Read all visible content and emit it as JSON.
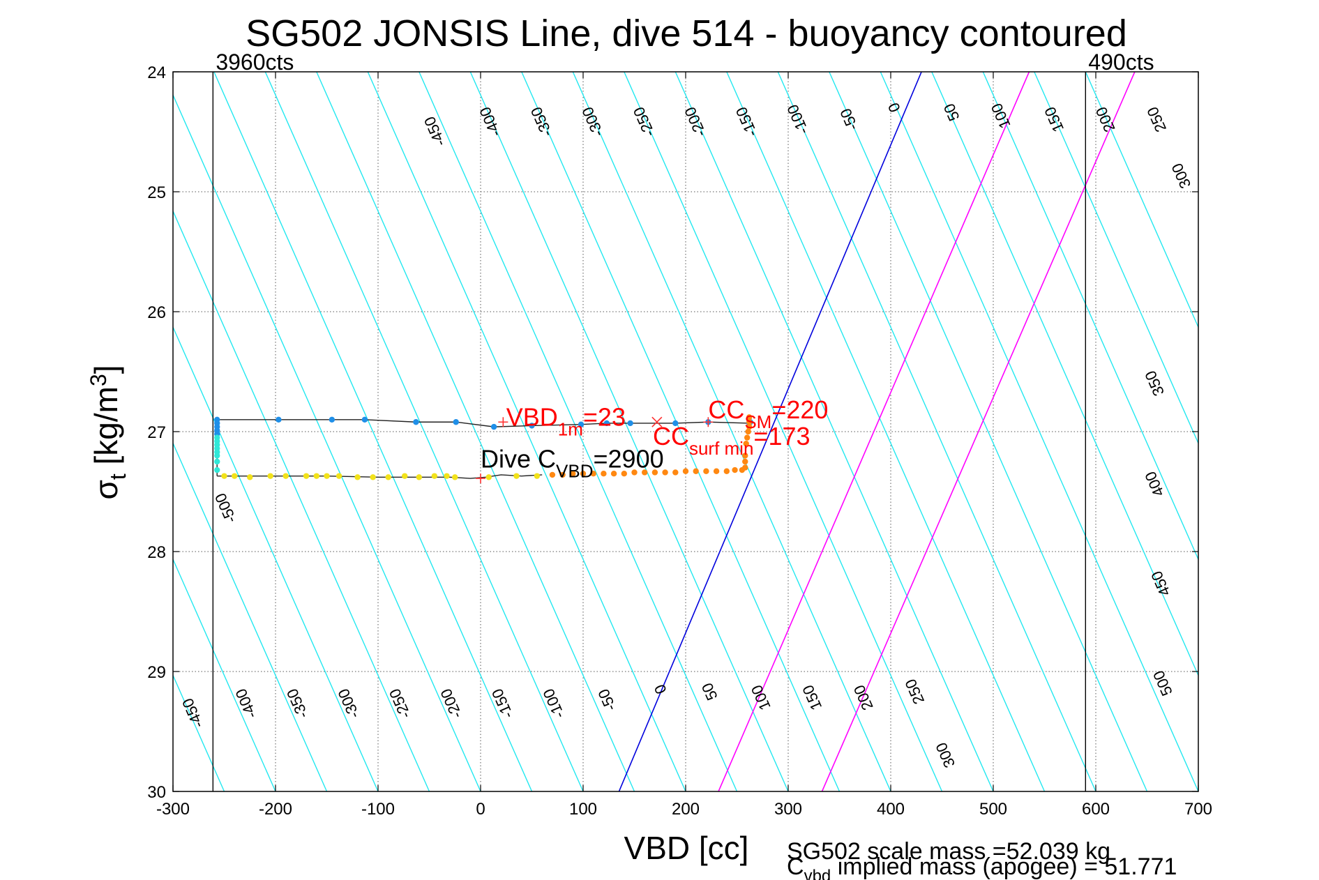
{
  "chart_data": {
    "type": "scatter",
    "title": "SG502 JONSIS Line, dive 514 - buoyancy contoured",
    "xlabel": "VBD [cc]",
    "ylabel_main": "σ",
    "ylabel_sub": "t",
    "ylabel_units": " [kg/m",
    "ylabel_sup": "3",
    "ylabel_close": "]",
    "xlim": [
      -300,
      700
    ],
    "ylim": [
      24,
      30
    ],
    "y_reversed": true,
    "grid": true,
    "xticks": [
      -300,
      -200,
      -100,
      0,
      100,
      200,
      300,
      400,
      500,
      600,
      700
    ],
    "xtick_labels": [
      "-300",
      "-200",
      "-100",
      "0",
      "100",
      "200",
      "300",
      "400",
      "500",
      "600",
      "700"
    ],
    "yticks": [
      24,
      25,
      26,
      27,
      28,
      29,
      30
    ],
    "ytick_labels": [
      "24",
      "25",
      "26",
      "27",
      "28",
      "29",
      "30"
    ],
    "vbd_limits": [
      {
        "x": -261,
        "label": "3960cts"
      },
      {
        "x": 590,
        "label": "490cts"
      }
    ],
    "contours": {
      "x_at_sigma24": [
        -1010,
        -960,
        -910,
        -860,
        -810,
        -760,
        -710,
        -660,
        -610,
        -560,
        -510,
        -460,
        -410,
        -360,
        -310,
        -260,
        -210,
        -160,
        -110,
        -60,
        -10,
        40,
        90,
        140,
        190,
        240,
        290,
        340,
        390,
        440,
        490,
        540,
        590
      ],
      "x_at_sigma30": [
        -700,
        -650,
        -600,
        -550,
        -500,
        -450,
        -400,
        -350,
        -300,
        -250,
        -200,
        -150,
        -100,
        -50,
        0,
        50,
        100,
        150,
        200,
        250,
        300,
        350,
        400,
        450,
        500,
        550,
        600,
        650,
        700,
        750,
        800,
        850,
        900
      ],
      "zero_contour": {
        "x_at_sigma24": 430,
        "x_at_sigma30": 135,
        "color": "#0000dd"
      },
      "special_contours": [
        {
          "x_at_sigma24": 535,
          "x_at_sigma30": 232,
          "color": "#ff00ff"
        },
        {
          "x_at_sigma24": 638,
          "x_at_sigma30": 333,
          "color": "#ff00ff"
        }
      ],
      "color": "#22e8f0",
      "top_labels": [
        {
          "text": "-450",
          "x": -40,
          "y": 24.48
        },
        {
          "text": "-400",
          "x": 14,
          "y": 24.4
        },
        {
          "text": "-350",
          "x": 64,
          "y": 24.4
        },
        {
          "text": "-300",
          "x": 114,
          "y": 24.4
        },
        {
          "text": "-250",
          "x": 164,
          "y": 24.4
        },
        {
          "text": "-200",
          "x": 214,
          "y": 24.4
        },
        {
          "text": "-150",
          "x": 264,
          "y": 24.4
        },
        {
          "text": "-100",
          "x": 314,
          "y": 24.38
        },
        {
          "text": "-50",
          "x": 364,
          "y": 24.38
        },
        {
          "text": "0",
          "x": 408,
          "y": 24.28
        },
        {
          "text": "50",
          "x": 464,
          "y": 24.32
        },
        {
          "text": "100",
          "x": 512,
          "y": 24.35
        },
        {
          "text": "150",
          "x": 564,
          "y": 24.38
        },
        {
          "text": "200",
          "x": 614,
          "y": 24.38
        },
        {
          "text": "250",
          "x": 664,
          "y": 24.38
        },
        {
          "text": "300",
          "x": 688,
          "y": 24.85
        },
        {
          "text": "350",
          "x": 662,
          "y": 26.58
        },
        {
          "text": "400",
          "x": 662,
          "y": 27.42
        },
        {
          "text": "450",
          "x": 668,
          "y": 28.25
        },
        {
          "text": "500",
          "x": 670,
          "y": 29.08
        }
      ],
      "bottom_labels": [
        {
          "text": "-500",
          "x": -244,
          "y": 27.62
        },
        {
          "text": "-450",
          "x": -276,
          "y": 29.33
        },
        {
          "text": "-400",
          "x": -224,
          "y": 29.25
        },
        {
          "text": "-350",
          "x": -174,
          "y": 29.25
        },
        {
          "text": "-300",
          "x": -124,
          "y": 29.25
        },
        {
          "text": "-250",
          "x": -74,
          "y": 29.25
        },
        {
          "text": "-200",
          "x": -24,
          "y": 29.25
        },
        {
          "text": "-150",
          "x": 26,
          "y": 29.25
        },
        {
          "text": "-100",
          "x": 76,
          "y": 29.25
        },
        {
          "text": "-50",
          "x": 128,
          "y": 29.22
        },
        {
          "text": "0",
          "x": 180,
          "y": 29.13
        },
        {
          "text": "50",
          "x": 228,
          "y": 29.15
        },
        {
          "text": "100",
          "x": 278,
          "y": 29.2
        },
        {
          "text": "150",
          "x": 328,
          "y": 29.2
        },
        {
          "text": "200",
          "x": 378,
          "y": 29.2
        },
        {
          "text": "250",
          "x": 428,
          "y": 29.15
        },
        {
          "text": "300",
          "x": 458,
          "y": 29.68
        }
      ]
    },
    "series": [
      {
        "color": "#1f8fe8",
        "x": [
          -257,
          -257,
          -257,
          -257,
          -257,
          -197,
          -145,
          -113,
          -63,
          -24,
          13,
          50,
          98,
          123,
          146,
          190,
          222,
          262,
          263
        ],
        "y": [
          26.9,
          26.93,
          26.96,
          26.99,
          27.02,
          26.9,
          26.9,
          26.9,
          26.92,
          26.92,
          26.96,
          26.95,
          26.94,
          26.93,
          26.93,
          26.93,
          26.92,
          26.93,
          26.92
        ]
      },
      {
        "color": "#30e8d8",
        "x": [
          -257,
          -257,
          -257,
          -257,
          -257,
          -257,
          -257,
          -257
        ],
        "y": [
          27.05,
          27.08,
          27.11,
          27.14,
          27.17,
          27.2,
          27.25,
          27.32
        ]
      },
      {
        "color": "#f2e21a",
        "x": [
          -250,
          -240,
          -225,
          -205,
          -190,
          -170,
          -160,
          -150,
          -138,
          -120,
          -105,
          -90,
          -74,
          -60,
          -45,
          -33,
          -25,
          8,
          35,
          55
        ],
        "y": [
          27.37,
          27.37,
          27.38,
          27.37,
          27.37,
          27.37,
          27.37,
          27.37,
          27.37,
          27.38,
          27.38,
          27.38,
          27.37,
          27.38,
          27.37,
          27.37,
          27.38,
          27.38,
          27.37,
          27.37
        ],
        "trace_x": [
          -257,
          -200,
          -150,
          -100,
          -60,
          -30,
          -10,
          5,
          20,
          40,
          60
        ],
        "trace_y": [
          27.37,
          27.37,
          27.37,
          27.38,
          27.38,
          27.38,
          27.39,
          27.38,
          27.36,
          27.37,
          27.36
        ]
      },
      {
        "color": "#ff8811",
        "x": [
          70,
          80,
          90,
          100,
          110,
          120,
          130,
          140,
          150,
          160,
          170,
          180,
          190,
          200,
          210,
          220,
          230,
          240,
          248,
          255,
          258,
          258,
          258,
          259,
          260,
          261,
          262,
          262,
          262
        ],
        "y": [
          27.36,
          27.36,
          27.35,
          27.35,
          27.35,
          27.35,
          27.35,
          27.35,
          27.34,
          27.34,
          27.34,
          27.34,
          27.34,
          27.33,
          27.33,
          27.33,
          27.33,
          27.33,
          27.32,
          27.32,
          27.3,
          27.25,
          27.2,
          27.1,
          27.05,
          27.0,
          26.96,
          26.92,
          26.88
        ]
      }
    ],
    "markers": [
      {
        "type": "plus",
        "x": 22,
        "y": 26.92,
        "color": "#ff3030"
      },
      {
        "type": "cross",
        "x": 172,
        "y": 26.92,
        "color": "#ff3030"
      },
      {
        "type": "plus",
        "x": 222,
        "y": 26.92,
        "color": "#ff3030"
      },
      {
        "type": "plus",
        "x": 0,
        "y": 27.39,
        "color": "#ff3030"
      }
    ],
    "annotations": [
      {
        "main": "VBD",
        "sub": "1m",
        "tail": "=23",
        "x": 25,
        "y": 26.95,
        "color": "#ff0000"
      },
      {
        "main": "CC",
        "sub": "SM",
        "tail": "=220",
        "x": 222,
        "y": 26.89,
        "color": "#ff0000"
      },
      {
        "main": "CC",
        "sub": "surf min",
        "tail": "=173",
        "x": 168,
        "y": 27.11,
        "color": "#ff0000"
      },
      {
        "main": "Dive C",
        "sub": "VBD",
        "tail": "=2900",
        "x": 0,
        "y": 27.3,
        "color": "#000000"
      }
    ],
    "footer": {
      "line1": "SG502 scale mass =52.039 kg",
      "line2_main": "C",
      "line2_sub": "vbd",
      "line2_tail": " implied mass (apogee) = 51.771"
    }
  }
}
